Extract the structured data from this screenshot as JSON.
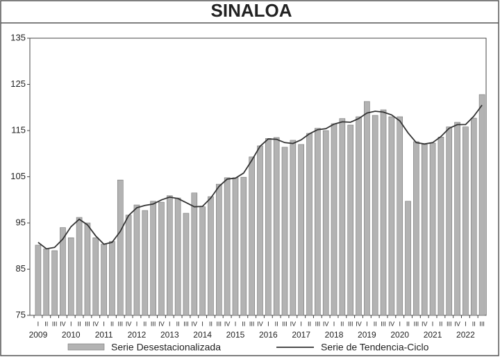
{
  "chart_data": {
    "type": "bar_line",
    "title": "SINALOA",
    "categories": [
      "I",
      "II",
      "III",
      "IV",
      "I",
      "II",
      "III",
      "IV",
      "I",
      "II",
      "III",
      "IV",
      "I",
      "II",
      "III",
      "IV",
      "I",
      "II",
      "III",
      "IV",
      "I",
      "II",
      "III",
      "IV",
      "I",
      "II",
      "III",
      "IV",
      "I",
      "II",
      "III",
      "IV",
      "I",
      "II",
      "III",
      "IV",
      "I",
      "II",
      "III",
      "IV",
      "I",
      "II",
      "III",
      "IV",
      "I",
      "II",
      "III",
      "IV",
      "I",
      "II",
      "III",
      "IV",
      "I",
      "II",
      "III"
    ],
    "years": [
      "2009",
      "2010",
      "2011",
      "2012",
      "2013",
      "2014",
      "2015",
      "2016",
      "2017",
      "2018",
      "2019",
      "2020",
      "2021",
      "2022"
    ],
    "series": [
      {
        "name": "Serie Desestacionalizada",
        "color": "#b3b3b3",
        "kind": "bar",
        "values": [
          90.2,
          89.4,
          89,
          94,
          91.8,
          96.2,
          95,
          91.8,
          90.4,
          91,
          104.3,
          96.7,
          98.9,
          97.7,
          99.7,
          99.5,
          100.9,
          100.4,
          97.1,
          101.5,
          98.5,
          100.7,
          103.4,
          104.8,
          104.8,
          104.9,
          109.3,
          111.7,
          113.3,
          113.5,
          111.4,
          112.9,
          112,
          114.4,
          115.5,
          115,
          116.5,
          117.6,
          116.2,
          118,
          121.3,
          118.3,
          119.5,
          118,
          118,
          99.7,
          112.6,
          112,
          112.3,
          113.6,
          115.8,
          116.8,
          115.8,
          117.7,
          122.8
        ]
      },
      {
        "name": "Serie de Tendencia-Ciclo",
        "color": "#333333",
        "kind": "line",
        "values": [
          90.8,
          89.4,
          89.7,
          91.5,
          94.2,
          95.8,
          94.6,
          92.2,
          90.4,
          90.8,
          93.2,
          96.6,
          98.3,
          98.8,
          99.1,
          100,
          100.6,
          100.3,
          99.4,
          98.5,
          98.6,
          100.4,
          102.9,
          104.5,
          104.7,
          105.8,
          108.6,
          111.6,
          113.2,
          113.1,
          112.4,
          112.2,
          113,
          114.3,
          115.2,
          115.4,
          116.4,
          116.9,
          116.8,
          117.6,
          118.8,
          119.2,
          119,
          118.4,
          117.1,
          114.5,
          112.4,
          112.1,
          112.4,
          113.7,
          115.5,
          116.3,
          116.3,
          118.1,
          120.5
        ]
      }
    ],
    "ylim": [
      75,
      135
    ],
    "yticks": [
      75,
      85,
      95,
      105,
      115,
      125,
      135
    ]
  }
}
